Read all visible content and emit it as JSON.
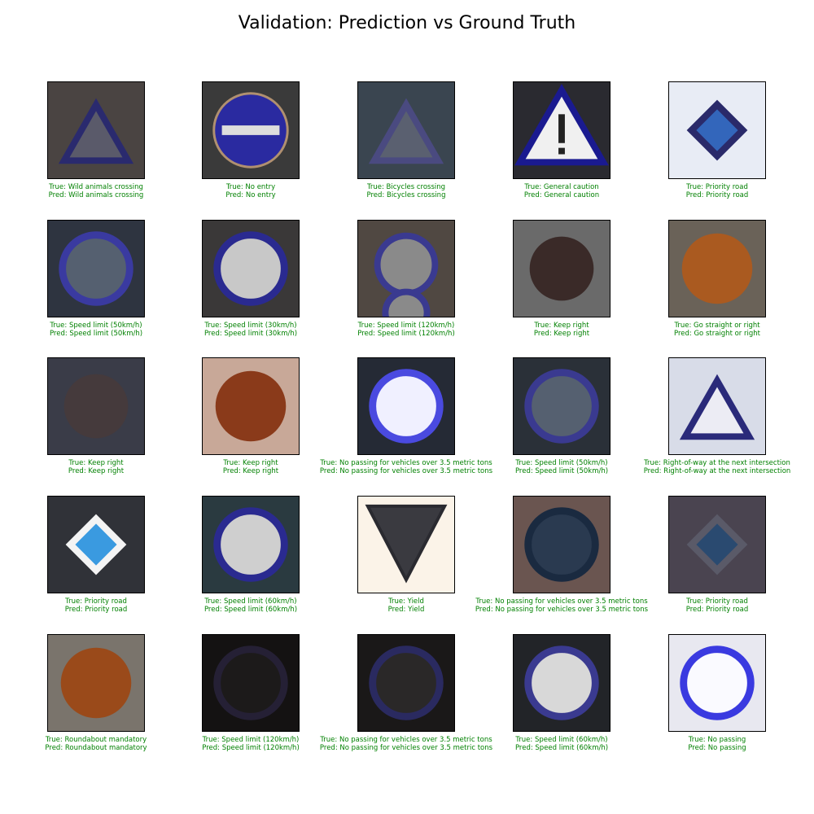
{
  "figure": {
    "title": "Validation: Prediction vs Ground Truth",
    "caption_color": "#008000"
  },
  "samples": [
    {
      "true_label": "True: Wild animals crossing",
      "pred_label": "Pred: Wild animals crossing",
      "icon": "triangle",
      "bg": "#4a4442",
      "sign": "#2a2a6e",
      "fill": "#5a5a6a"
    },
    {
      "true_label": "True: No entry",
      "pred_label": "Pred: No entry",
      "icon": "no-entry",
      "bg": "#3a3a3a",
      "sign": "#2a2aa0",
      "fill": "#dddddd"
    },
    {
      "true_label": "True: Bicycles crossing",
      "pred_label": "Pred: Bicycles crossing",
      "icon": "triangle",
      "bg": "#3a4550",
      "sign": "#4a4a80",
      "fill": "#5a6070"
    },
    {
      "true_label": "True: General caution",
      "pred_label": "Pred: General caution",
      "icon": "caution",
      "bg": "#2a2a30",
      "sign": "#1a1a90",
      "fill": "#f0f0f0"
    },
    {
      "true_label": "True: Priority road",
      "pred_label": "Pred: Priority road",
      "icon": "diamond",
      "bg": "#e8ecf5",
      "sign": "#2a2a6a",
      "fill": "#3366bb"
    },
    {
      "true_label": "True: Speed limit (50km/h)",
      "pred_label": "Pred: Speed limit (50km/h)",
      "icon": "circle",
      "bg": "#2e3440",
      "sign": "#3a3aa0",
      "fill": "#556070"
    },
    {
      "true_label": "True: Speed limit (30km/h)",
      "pred_label": "Pred: Speed limit (30km/h)",
      "icon": "circle",
      "bg": "#3a3838",
      "sign": "#2a2a90",
      "fill": "#c8c8c8"
    },
    {
      "true_label": "True: Speed limit (120km/h)",
      "pred_label": "Pred: Speed limit (120km/h)",
      "icon": "circle2",
      "bg": "#504842",
      "sign": "#3a3a90",
      "fill": "#8a8a8a"
    },
    {
      "true_label": "True: Keep right",
      "pred_label": "Pred: Keep right",
      "icon": "dark-circle",
      "bg": "#6a6a6a",
      "sign": "#3a2a28",
      "fill": "#3a2a28"
    },
    {
      "true_label": "True: Go straight or right",
      "pred_label": "Pred: Go straight or right",
      "icon": "orange-circle",
      "bg": "#6a6258",
      "sign": "#aa5a20",
      "fill": "#aa5a20"
    },
    {
      "true_label": "True: Keep right",
      "pred_label": "Pred: Keep right",
      "icon": "dark-circle",
      "bg": "#3a3c48",
      "sign": "#453a3c",
      "fill": "#453a3c"
    },
    {
      "true_label": "True: Keep right",
      "pred_label": "Pred: Keep right",
      "icon": "orange-circle",
      "bg": "#c8a898",
      "sign": "#8a3a1a",
      "fill": "#8a3a1a"
    },
    {
      "true_label": "True: No passing for vehicles over 3.5 metric tons",
      "pred_label": "Pred: No passing for vehicles over 3.5 metric tons",
      "icon": "circle",
      "bg": "#252a35",
      "sign": "#4a4ae0",
      "fill": "#f0f0ff"
    },
    {
      "true_label": "True: Speed limit (50km/h)",
      "pred_label": "Pred: Speed limit (50km/h)",
      "icon": "circle",
      "bg": "#2a3038",
      "sign": "#3a3a90",
      "fill": "#556070"
    },
    {
      "true_label": "True: Right-of-way at the next intersection",
      "pred_label": "Pred: Right-of-way at the next intersection",
      "icon": "triangle",
      "bg": "#d8dce8",
      "sign": "#2a2a7a",
      "fill": "#ececf4"
    },
    {
      "true_label": "True: Priority road",
      "pred_label": "Pred: Priority road",
      "icon": "diamond",
      "bg": "#303238",
      "sign": "#f4f4f4",
      "fill": "#3a9ae0"
    },
    {
      "true_label": "True: Speed limit (60km/h)",
      "pred_label": "Pred: Speed limit (60km/h)",
      "icon": "circle",
      "bg": "#2a3a40",
      "sign": "#2a2a90",
      "fill": "#cfcfcf"
    },
    {
      "true_label": "True: Yield",
      "pred_label": "Pred: Yield",
      "icon": "yield",
      "bg": "#fbf3e8",
      "sign": "#2a2a30",
      "fill": "#3a3a40"
    },
    {
      "true_label": "True: No passing for vehicles over 3.5 metric tons",
      "pred_label": "Pred: No passing for vehicles over 3.5 metric tons",
      "icon": "circle",
      "bg": "#6a5550",
      "sign": "#1a2a40",
      "fill": "#2a3a50"
    },
    {
      "true_label": "True: Priority road",
      "pred_label": "Pred: Priority road",
      "icon": "diamond",
      "bg": "#4a4450",
      "sign": "#5a5a68",
      "fill": "#2a4a70"
    },
    {
      "true_label": "True: Roundabout mandatory",
      "pred_label": "Pred: Roundabout mandatory",
      "icon": "orange-circle",
      "bg": "#7a746c",
      "sign": "#9a4a1a",
      "fill": "#9a4a1a"
    },
    {
      "true_label": "True: Speed limit (120km/h)",
      "pred_label": "Pred: Speed limit (120km/h)",
      "icon": "circle",
      "bg": "#141212",
      "sign": "#252035",
      "fill": "#1c1a1a"
    },
    {
      "true_label": "True: No passing for vehicles over 3.5 metric tons",
      "pred_label": "Pred: No passing for vehicles over 3.5 metric tons",
      "icon": "circle",
      "bg": "#1a1818",
      "sign": "#2a2a60",
      "fill": "#2a2828"
    },
    {
      "true_label": "True: Speed limit (60km/h)",
      "pred_label": "Pred: Speed limit (60km/h)",
      "icon": "circle",
      "bg": "#222428",
      "sign": "#3a3a90",
      "fill": "#d8d8d8"
    },
    {
      "true_label": "True: No passing",
      "pred_label": "Pred: No passing",
      "icon": "circle",
      "bg": "#e8e8f0",
      "sign": "#3a3ae0",
      "fill": "#fafaff"
    }
  ]
}
